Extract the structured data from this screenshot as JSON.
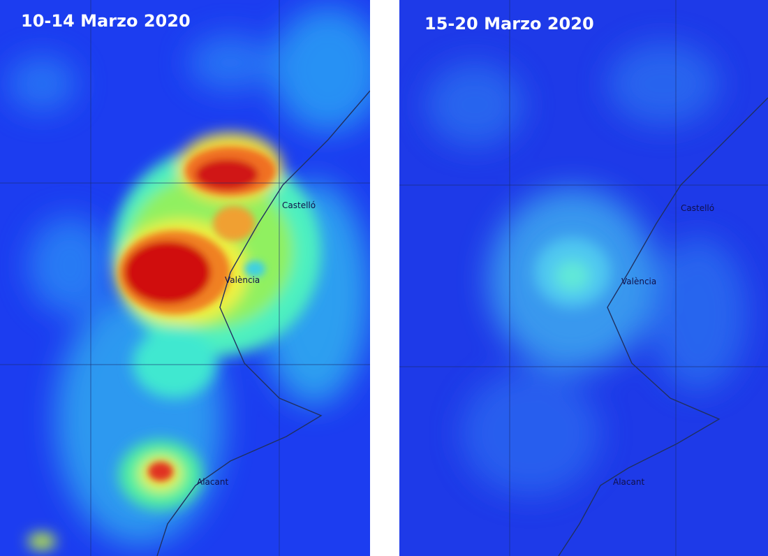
{
  "panels": [
    {
      "title": "10-14 Marzo 2020",
      "cities": [
        "Castelló",
        "València",
        "Alacant"
      ]
    },
    {
      "title": "15-20 Marzo 2020",
      "cities": [
        "Castelló",
        "València",
        "Alacant"
      ]
    }
  ]
}
